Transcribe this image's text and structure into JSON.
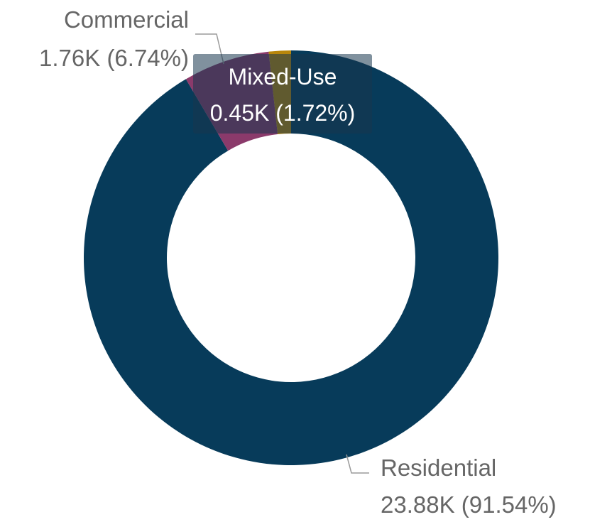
{
  "chart_data": {
    "type": "pie",
    "donut": true,
    "categories": [
      "Residential",
      "Commercial",
      "Mixed-Use"
    ],
    "values": [
      23.88,
      1.76,
      0.45
    ],
    "value_labels": [
      "23.88K",
      "1.76K",
      "0.45K"
    ],
    "percent_labels": [
      "91.54%",
      "6.74%",
      "1.72%"
    ],
    "colors": [
      "#073b5a",
      "#8b3a6b",
      "#b8860b"
    ],
    "data_labels": [
      {
        "category": "Residential",
        "value": "23.88K (91.54%)"
      },
      {
        "category": "Commercial",
        "value": "1.76K (6.74%)"
      },
      {
        "category": "Mixed-Use",
        "value": "0.45K (1.72%)"
      }
    ],
    "tooltip": {
      "category": "Mixed-Use",
      "value": "0.45K (1.72%)"
    },
    "legend": "none"
  },
  "colors": {
    "label_text": "#666666",
    "leader_line": "#9a9a9a",
    "tooltip_bg": "#18364e",
    "tooltip_text": "#ffffff"
  }
}
